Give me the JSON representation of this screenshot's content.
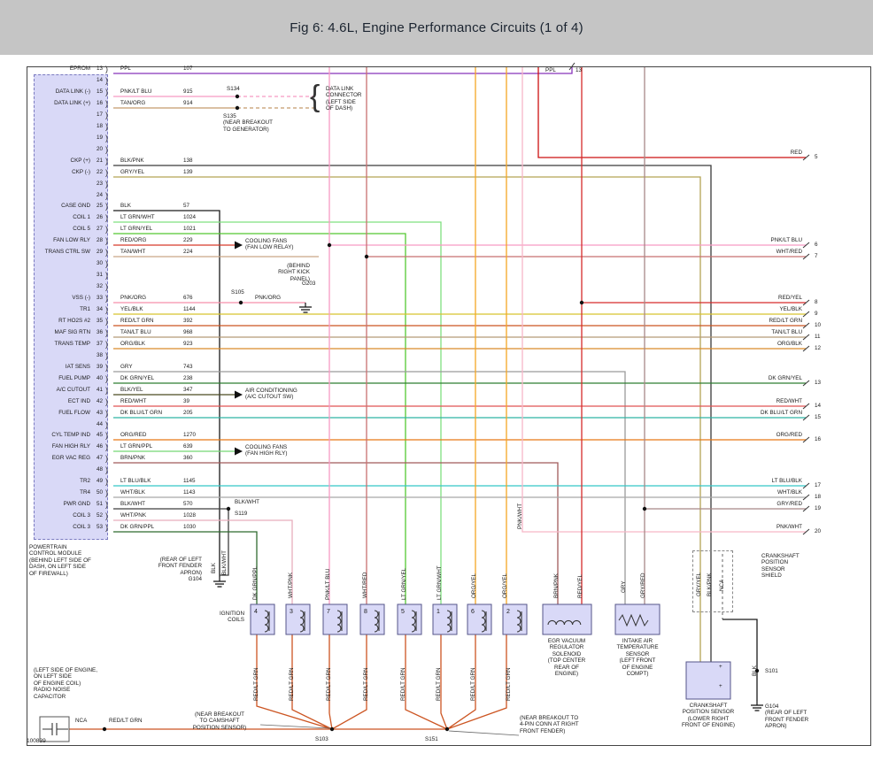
{
  "header": {
    "title": "Fig 6: 4.6L, Engine Performance Circuits (1 of 4)"
  },
  "figure_number": "100839",
  "pcm": {
    "label": "POWERTRAIN\nCONTROL MODULE\n(BEHIND LEFT SIDE OF\nDASH, ON LEFT SIDE\nOF FIREWALL)",
    "pins": [
      {
        "n": 13,
        "name": "EPROM",
        "wire": "PPL",
        "circuit": "107"
      },
      {
        "n": 14
      },
      {
        "n": 15,
        "name": "DATA LINK (-)",
        "wire": "PNK/LT BLU",
        "circuit": "915"
      },
      {
        "n": 16,
        "name": "DATA LINK (+)",
        "wire": "TAN/ORG",
        "circuit": "914"
      },
      {
        "n": 17
      },
      {
        "n": 18
      },
      {
        "n": 19
      },
      {
        "n": 20
      },
      {
        "n": 21,
        "name": "CKP (+)",
        "wire": "BLK/PNK",
        "circuit": "138"
      },
      {
        "n": 22,
        "name": "CKP (-)",
        "wire": "GRY/YEL",
        "circuit": "139"
      },
      {
        "n": 23
      },
      {
        "n": 24
      },
      {
        "n": 25,
        "name": "CASE GND",
        "wire": "BLK",
        "circuit": "57"
      },
      {
        "n": 26,
        "name": "COIL 1",
        "wire": "LT GRN/WHT",
        "circuit": "1024"
      },
      {
        "n": 27,
        "name": "COIL 5",
        "wire": "LT GRN/YEL",
        "circuit": "1021"
      },
      {
        "n": 28,
        "name": "FAN LOW RLY",
        "wire": "RED/ORG",
        "circuit": "229"
      },
      {
        "n": 29,
        "name": "TRANS CTRL SW",
        "wire": "TAN/WHT",
        "circuit": "224"
      },
      {
        "n": 30
      },
      {
        "n": 31
      },
      {
        "n": 32
      },
      {
        "n": 33,
        "name": "VSS (-)",
        "wire": "PNK/ORG",
        "circuit": "676"
      },
      {
        "n": 34,
        "name": "TR1",
        "wire": "YEL/BLK",
        "circuit": "1144"
      },
      {
        "n": 35,
        "name": "RT HO2S #2",
        "wire": "RED/LT GRN",
        "circuit": "392"
      },
      {
        "n": 36,
        "name": "MAF SIG RTN",
        "wire": "TAN/LT BLU",
        "circuit": "968"
      },
      {
        "n": 37,
        "name": "TRANS TEMP",
        "wire": "ORG/BLK",
        "circuit": "923"
      },
      {
        "n": 38
      },
      {
        "n": 39,
        "name": "IAT SENS",
        "wire": "GRY",
        "circuit": "743"
      },
      {
        "n": 40,
        "name": "FUEL PUMP",
        "wire": "DK GRN/YEL",
        "circuit": "238"
      },
      {
        "n": 41,
        "name": "A/C CUTOUT",
        "wire": "BLK/YEL",
        "circuit": "347"
      },
      {
        "n": 42,
        "name": "ECT IND",
        "wire": "RED/WHT",
        "circuit": "39"
      },
      {
        "n": 43,
        "name": "FUEL FLOW",
        "wire": "DK BLU/LT GRN",
        "circuit": "205"
      },
      {
        "n": 44
      },
      {
        "n": 45,
        "name": "CYL TEMP IND",
        "wire": "ORG/RED",
        "circuit": "1270"
      },
      {
        "n": 46,
        "name": "FAN HIGH RLY",
        "wire": "LT GRN/PPL",
        "circuit": "639"
      },
      {
        "n": 47,
        "name": "EGR VAC REG",
        "wire": "BRN/PNK",
        "circuit": "360"
      },
      {
        "n": 48
      },
      {
        "n": 49,
        "name": "TR2",
        "wire": "LT BLU/BLK",
        "circuit": "1145"
      },
      {
        "n": 50,
        "name": "TR4",
        "wire": "WHT/BLK",
        "circuit": "1143"
      },
      {
        "n": 51,
        "name": "PWR GND",
        "wire": "BLK/WHT",
        "circuit": "570"
      },
      {
        "n": 52,
        "name": "COIL 3",
        "wire": "WHT/PNK",
        "circuit": "1028"
      },
      {
        "n": 53,
        "name": "COIL 3",
        "wire": "DK GRN/PPL",
        "circuit": "1030"
      }
    ]
  },
  "top_exit": {
    "wire": "PPL",
    "n": "13"
  },
  "right_exits": [
    {
      "wire": "RED",
      "n": "5"
    },
    {
      "wire": "PNK/LT BLU",
      "n": "6"
    },
    {
      "wire": "WHT/RED",
      "n": "7"
    },
    {
      "wire": "RED/YEL",
      "n": "8"
    },
    {
      "wire": "YEL/BLK",
      "n": "9"
    },
    {
      "wire": "RED/LT GRN",
      "n": "10"
    },
    {
      "wire": "TAN/LT BLU",
      "n": "11"
    },
    {
      "wire": "ORG/BLK",
      "n": "12"
    },
    {
      "wire": "DK GRN/YEL",
      "n": "13"
    },
    {
      "wire": "RED/WHT",
      "n": "14"
    },
    {
      "wire": "DK BLU/LT GRN",
      "n": "15"
    },
    {
      "wire": "ORG/RED",
      "n": "16"
    },
    {
      "wire": "LT BLU/BLK",
      "n": "17"
    },
    {
      "wire": "WHT/BLK",
      "n": "18"
    },
    {
      "wire": "GRY/RED",
      "n": "19"
    },
    {
      "wire": "PNK/WHT",
      "n": "20"
    }
  ],
  "vertical_wire_labels": [
    "BLK",
    "BLK/WHT",
    "DK GRN/PPL",
    "WHT/PNK",
    "PNK/LT BLU",
    "WHT/RED",
    "LT GRN/YEL",
    "LT GRN/WHT",
    "ORG/YEL",
    "ORG/YEL",
    "PNK/WHT",
    "BRN/PNK",
    "RED/YEL",
    "GRY",
    "GRY/RED",
    "GRY/YEL",
    "BLK/PNK",
    "NCA",
    "BLK"
  ],
  "ignition": {
    "label": "IGNITION\nCOILS",
    "coil_numbers": [
      "4",
      "3",
      "7",
      "8",
      "5",
      "1",
      "6",
      "2"
    ],
    "feed_wire": "RED/LT GRN"
  },
  "annotations": {
    "dlc_bracket": "{",
    "dlc": "DATA LINK\nCONNECTOR\n(LEFT SIDE\nOF DASH)",
    "s134": "S134",
    "s135": "S135\n(NEAR BREAKOUT\nTO GENERATOR)",
    "cooling_fans_low": "COOLING FANS\n(FAN LOW RELAY)",
    "behind_kick_panel": "(BEHIND\nRIGHT KICK\nPANEL)",
    "g203": "G203",
    "s105": "S105",
    "s105_wire": "PNK/ORG",
    "air_conditioning": "AIR CONDITIONING\n(A/C CUTOUT SW)",
    "cooling_fans_high": "COOLING FANS\n(FAN HIGH RLY)",
    "s119_wire": "BLK/WHT",
    "s119": "S119",
    "g104_left": "(REAR OF LEFT\nFRONT FENDER\nAPRON)\nG104",
    "egr": "EGR VACUUM\nREGULATOR\nSOLENOID\n(TOP CENTER\nREAR OF\nENGINE)",
    "iat": "INTAKE AIR\nTEMPERATURE\nSENSOR\n(LEFT FRONT\nOF ENGINE\nCOMPT)",
    "shield": "CRANKSHAFT\nPOSITION\nSENSOR\nSHIELD",
    "ckp": "CRANKSHAFT\nPOSITION SENSOR\n(LOWER RIGHT\nFRONT OF ENGINE)",
    "s101": "S101",
    "g104_right": "G104\n(REAR OF LEFT\nFRONT FENDER\nAPRON)",
    "radio_capacitor": "(LEFT SIDE OF ENGINE,\nON LEFT SIDE\nOF ENGINE COIL)\nRADIO NOISE\nCAPACITOR",
    "nca": "NCA",
    "red_lt_grn_feed": "RED/LT GRN",
    "cam_breakout": "(NEAR BREAKOUT\nTO CAMSHAFT\nPOSITION SENSOR)",
    "s103": "S103",
    "s151": "S151",
    "fender_breakout": "(NEAR BREAKOUT TO\n4-PIN CONN AT RIGHT\nFRONT FENDER)",
    "plus": "+"
  },
  "wire_colors": {
    "PPL": "#8833bb",
    "PNK/LT BLU": "#f79ac4",
    "TAN/ORG": "#c49a6c",
    "BLK/PNK": "#3a3a3a",
    "GRY/YEL": "#b3a355",
    "BLK": "#1a1a1a",
    "LT GRN/WHT": "#7fe07f",
    "LT GRN/YEL": "#54c832",
    "RED/ORG": "#d63a2a",
    "TAN/WHT": "#c9a887",
    "PNK/ORG": "#f78faa",
    "YEL/BLK": "#d6c42e",
    "RED/LT GRN": "#cc5522",
    "TAN/LT BLU": "#b59a78",
    "ORG/BLK": "#d98a2b",
    "GRY": "#9a9a9a",
    "DK GRN/YEL": "#2e7d32",
    "BLK/YEL": "#4a4a22",
    "RED/WHT": "#e05555",
    "DK BLU/LT GRN": "#2fb3a3",
    "ORG/RED": "#e87816",
    "LT GRN/PPL": "#74d874",
    "BRN/PNK": "#a05a5a",
    "LT BLU/BLK": "#35c8c8",
    "WHT/BLK": "#a8a8a8",
    "BLK/WHT": "#3f3f3f",
    "WHT/PNK": "#e8aebc",
    "DK GRN/PPL": "#2f6b2f",
    "RED": "#cc1111",
    "RED/YEL": "#d62b2b",
    "GRY/RED": "#a88888",
    "ORG/YEL": "#f5a623",
    "WHT/RED": "#c87070",
    "PNK/WHT": "#f7b6c8",
    "NCA": "#888888"
  }
}
